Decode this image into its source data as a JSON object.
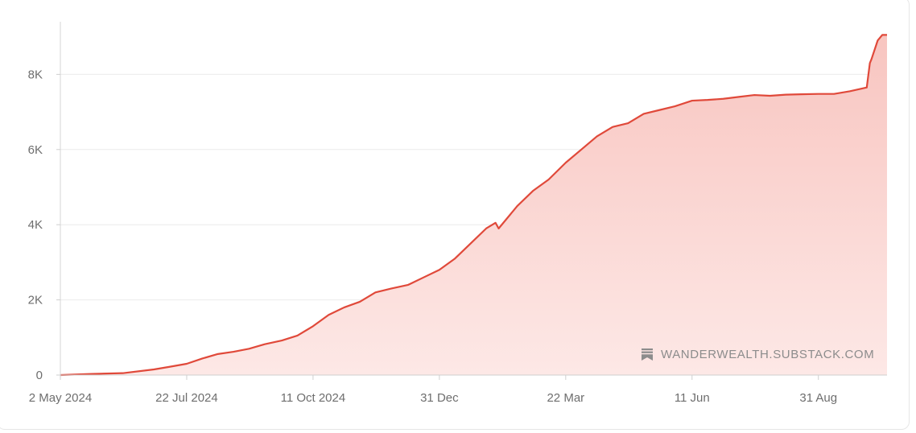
{
  "chart_data": {
    "type": "area",
    "title": "",
    "xlabel": "",
    "ylabel": "",
    "x_ticks": [
      "2 May 2024",
      "22 Jul 2024",
      "11 Oct 2024",
      "31 Dec",
      "22 Mar",
      "11 Jun",
      "31 Aug"
    ],
    "y_ticks": [
      "0",
      "2K",
      "4K",
      "6K",
      "8K"
    ],
    "ylim": [
      0,
      9400
    ],
    "xlim": [
      "2024-05-02",
      "2025-10-14"
    ],
    "grid": "horizontal",
    "colors": {
      "line": "#e0493a",
      "fill_top": "#f8c5c0",
      "fill_bottom": "#fde8e6"
    },
    "series": [
      {
        "x": [
          "2024-05-02",
          "2024-05-22",
          "2024-06-11",
          "2024-07-01",
          "2024-07-11",
          "2024-07-22",
          "2024-08-01",
          "2024-08-11",
          "2024-08-21",
          "2024-08-31",
          "2024-09-10",
          "2024-09-21",
          "2024-10-01",
          "2024-10-11",
          "2024-10-21",
          "2024-10-31",
          "2024-11-10",
          "2024-11-20",
          "2024-11-30",
          "2024-12-11",
          "2024-12-21",
          "2024-12-31",
          "2025-01-10",
          "2025-01-20",
          "2025-01-30",
          "2025-02-05",
          "2025-02-07",
          "2025-02-19",
          "2025-03-01",
          "2025-03-11",
          "2025-03-22",
          "2025-04-01",
          "2025-04-11",
          "2025-04-21",
          "2025-05-01",
          "2025-05-11",
          "2025-05-21",
          "2025-05-31",
          "2025-06-11",
          "2025-06-21",
          "2025-07-01",
          "2025-07-11",
          "2025-07-21",
          "2025-07-31",
          "2025-08-10",
          "2025-08-20",
          "2025-08-31",
          "2025-09-10",
          "2025-09-20",
          "2025-10-01",
          "2025-10-03",
          "2025-10-04",
          "2025-10-08",
          "2025-10-11",
          "2025-10-14"
        ],
        "values": [
          0,
          30,
          50,
          150,
          220,
          300,
          440,
          560,
          620,
          700,
          820,
          920,
          1050,
          1300,
          1600,
          1800,
          1950,
          2200,
          2300,
          2400,
          2600,
          2800,
          3100,
          3500,
          3900,
          4050,
          3900,
          4500,
          4900,
          5200,
          5650,
          6000,
          6350,
          6600,
          6700,
          6950,
          7050,
          7150,
          7300,
          7320,
          7350,
          7400,
          7450,
          7430,
          7460,
          7470,
          7480,
          7480,
          7550,
          7650,
          8300,
          8400,
          8900,
          9050,
          9050
        ]
      }
    ]
  },
  "watermark": {
    "text": "WANDERWEALTH.SUBSTACK.COM",
    "icon": "substack-logo-icon"
  }
}
